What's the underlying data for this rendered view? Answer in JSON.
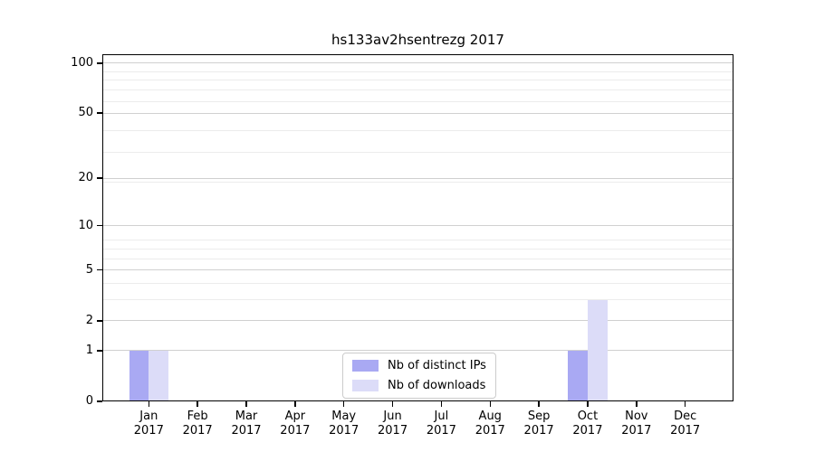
{
  "title": "hs133av2hsentrezg 2017",
  "colors": {
    "ips": "#a9a9f3",
    "downloads": "#dcdcf8",
    "grid_major": "#d0d0d0",
    "grid_minor": "#ececec",
    "spine": "#000000"
  },
  "chart_data": {
    "type": "bar",
    "title": "hs133av2hsentrezg 2017",
    "categories": [
      "Jan",
      "Feb",
      "Mar",
      "Apr",
      "May",
      "Jun",
      "Jul",
      "Aug",
      "Sep",
      "Oct",
      "Nov",
      "Dec"
    ],
    "year": "2017",
    "series": [
      {
        "name": "Nb of distinct IPs",
        "color_key": "ips",
        "values": [
          1,
          0,
          0,
          0,
          0,
          0,
          0,
          0,
          0,
          1,
          0,
          0
        ]
      },
      {
        "name": "Nb of downloads",
        "color_key": "downloads",
        "values": [
          1,
          0,
          0,
          0,
          0,
          0,
          0,
          0,
          0,
          3,
          0,
          0
        ]
      }
    ],
    "xlabel": "",
    "ylabel": "",
    "yscale": "log1p",
    "yticks": [
      0,
      1,
      2,
      5,
      10,
      20,
      50,
      100
    ],
    "ylim": [
      0,
      113
    ],
    "grid": "both",
    "legend_position": "lower center"
  },
  "legend": {
    "items": [
      {
        "label": "Nb of distinct IPs"
      },
      {
        "label": "Nb of downloads"
      }
    ]
  }
}
